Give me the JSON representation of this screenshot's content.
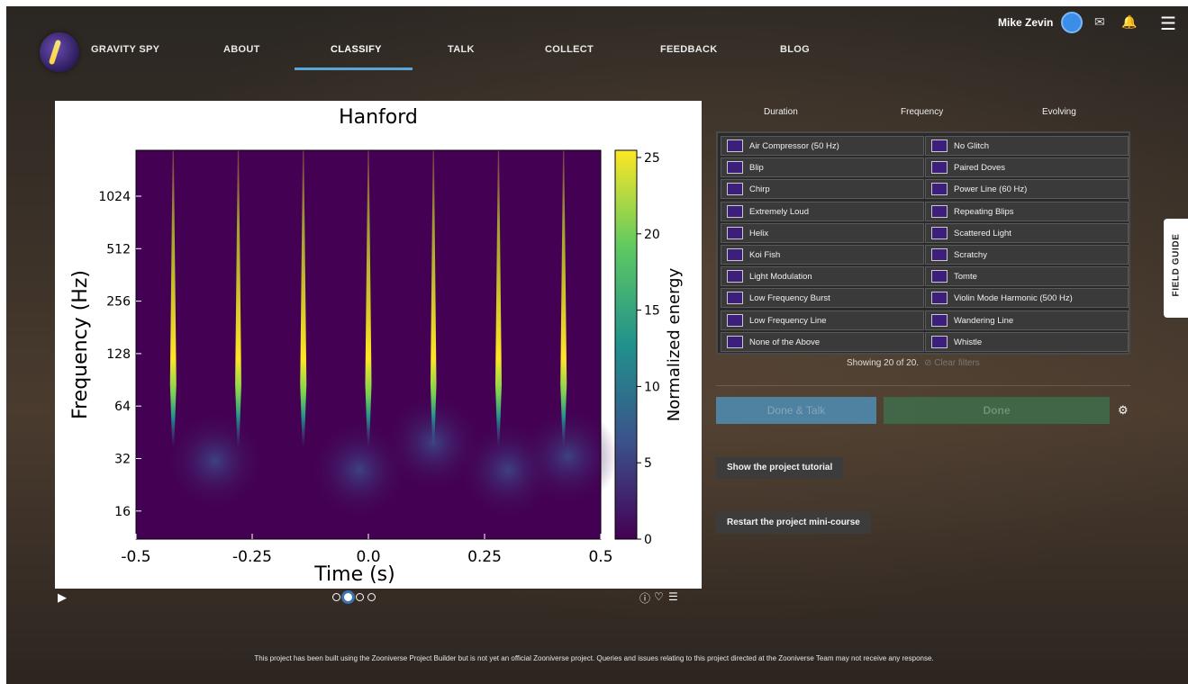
{
  "header": {
    "nav": [
      "GRAVITY SPY",
      "ABOUT",
      "CLASSIFY",
      "TALK",
      "COLLECT",
      "FEEDBACK",
      "BLOG"
    ],
    "active_nav": "CLASSIFY",
    "user_name": "Mike Zevin"
  },
  "subject": {
    "title": "Hanford",
    "xlabel": "Time (s)",
    "ylabel": "Frequency (Hz)",
    "colorbar_label": "Normalized energy",
    "frame_count": 4,
    "active_frame": 1
  },
  "chart_data": {
    "type": "heatmap",
    "title": "Hanford",
    "xlabel": "Time (s)",
    "ylabel": "Frequency (Hz)",
    "x_ticks": [
      "-0.5",
      "-0.25",
      "0.0",
      "0.25",
      "0.5"
    ],
    "y_ticks": [
      "16",
      "32",
      "64",
      "128",
      "256",
      "512",
      "1024"
    ],
    "y_scale": "log2",
    "xlim": [
      -0.5,
      0.5
    ],
    "colorbar": {
      "label": "Normalized energy",
      "ticks": [
        "0",
        "5",
        "10",
        "15",
        "20",
        "25"
      ],
      "range": [
        0,
        25
      ]
    },
    "colormap": "viridis",
    "events": [
      {
        "time": -0.42,
        "peak_energy": 25
      },
      {
        "time": -0.28,
        "peak_energy": 24
      },
      {
        "time": -0.14,
        "peak_energy": 25
      },
      {
        "time": 0.0,
        "peak_energy": 25
      },
      {
        "time": 0.14,
        "peak_energy": 22
      },
      {
        "time": 0.28,
        "peak_energy": 25
      },
      {
        "time": 0.42,
        "peak_energy": 25
      }
    ]
  },
  "task": {
    "filters": [
      "Duration",
      "Frequency",
      "Evolving"
    ],
    "choices_left": [
      "Air Compressor (50 Hz)",
      "Blip",
      "Chirp",
      "Extremely Loud",
      "Helix",
      "Koi Fish",
      "Light Modulation",
      "Low Frequency Burst",
      "Low Frequency Line",
      "None of the Above"
    ],
    "choices_right": [
      "No Glitch",
      "Paired Doves",
      "Power Line (60 Hz)",
      "Repeating Blips",
      "Scattered Light",
      "Scratchy",
      "Tomte",
      "Violin Mode Harmonic (500 Hz)",
      "Wandering Line",
      "Whistle"
    ],
    "showing": "Showing 20 of 20.",
    "clear_filters": "⊘ Clear filters",
    "done_talk_label": "Done & Talk",
    "done_label": "Done",
    "tutorial_label": "Show the project tutorial",
    "minicourse_label": "Restart the project mini-course"
  },
  "field_guide_label": "FIELD GUIDE",
  "footer_text": "This project has been built using the Zooniverse Project Builder but is not yet an official Zooniverse project. Queries and issues relating to this project directed at the Zooniverse Team may not receive any response.",
  "colors": {
    "accent": "#58a6d8",
    "done": "#3f6a4a",
    "done_talk": "#4f8eb5",
    "thumb": "#3b1f7a"
  }
}
